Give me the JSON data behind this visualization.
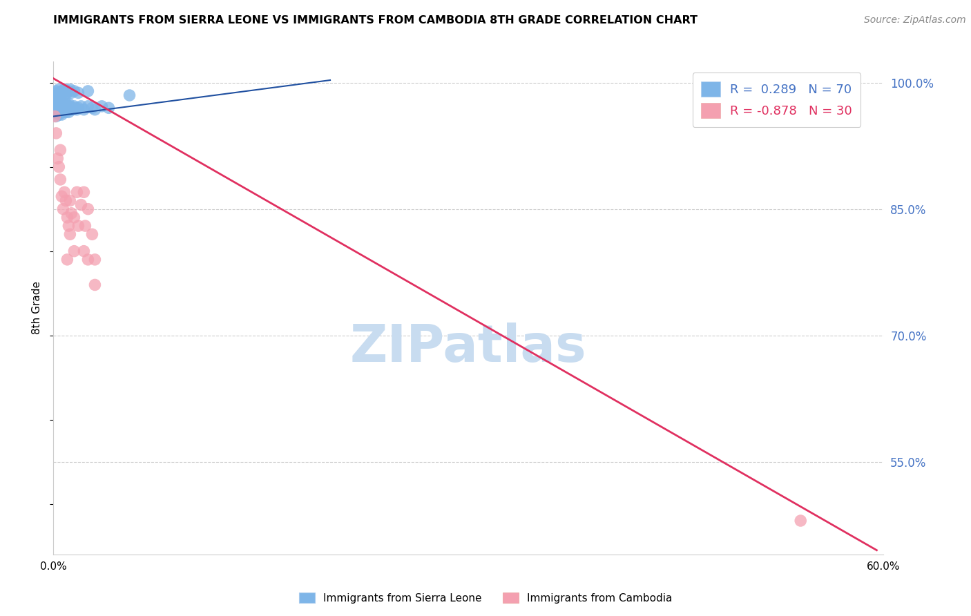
{
  "title": "IMMIGRANTS FROM SIERRA LEONE VS IMMIGRANTS FROM CAMBODIA 8TH GRADE CORRELATION CHART",
  "source": "Source: ZipAtlas.com",
  "ylabel": "8th Grade",
  "right_ytick_labels": [
    "100.0%",
    "85.0%",
    "70.0%",
    "55.0%"
  ],
  "right_ytick_values": [
    1.0,
    0.85,
    0.7,
    0.55
  ],
  "xlim": [
    0.0,
    0.6
  ],
  "ylim": [
    0.44,
    1.025
  ],
  "xtick_values": [
    0.0,
    0.1,
    0.2,
    0.3,
    0.4,
    0.5,
    0.6
  ],
  "xtick_labels": [
    "0.0%",
    "",
    "",
    "",
    "",
    "",
    "60.0%"
  ],
  "blue_color": "#7EB5E8",
  "pink_color": "#F4A0B0",
  "blue_line_color": "#2050A0",
  "pink_line_color": "#E03060",
  "legend_blue_R": " 0.289",
  "legend_blue_N": "70",
  "legend_pink_R": "-0.878",
  "legend_pink_N": "30",
  "watermark": "ZIPatlas",
  "watermark_color": "#C8DCF0",
  "blue_line_x": [
    0.0,
    0.2
  ],
  "blue_line_y": [
    0.96,
    1.003
  ],
  "pink_line_x": [
    0.0,
    0.595
  ],
  "pink_line_y": [
    1.005,
    0.445
  ],
  "blue_dots_x": [
    0.001,
    0.001,
    0.001,
    0.001,
    0.002,
    0.002,
    0.002,
    0.002,
    0.002,
    0.003,
    0.003,
    0.003,
    0.003,
    0.003,
    0.004,
    0.004,
    0.004,
    0.004,
    0.004,
    0.005,
    0.005,
    0.005,
    0.005,
    0.006,
    0.006,
    0.006,
    0.006,
    0.007,
    0.007,
    0.007,
    0.008,
    0.008,
    0.008,
    0.009,
    0.009,
    0.01,
    0.01,
    0.011,
    0.011,
    0.012,
    0.012,
    0.013,
    0.014,
    0.015,
    0.016,
    0.017,
    0.018,
    0.02,
    0.022,
    0.025,
    0.028,
    0.03,
    0.035,
    0.04,
    0.002,
    0.003,
    0.004,
    0.005,
    0.006,
    0.007,
    0.008,
    0.009,
    0.01,
    0.011,
    0.012,
    0.013,
    0.015,
    0.018,
    0.025,
    0.055
  ],
  "blue_dots_y": [
    0.97,
    0.975,
    0.98,
    0.965,
    0.972,
    0.978,
    0.968,
    0.982,
    0.96,
    0.975,
    0.97,
    0.98,
    0.965,
    0.985,
    0.972,
    0.968,
    0.98,
    0.975,
    0.962,
    0.97,
    0.975,
    0.98,
    0.965,
    0.972,
    0.968,
    0.978,
    0.962,
    0.975,
    0.97,
    0.965,
    0.972,
    0.968,
    0.98,
    0.975,
    0.965,
    0.972,
    0.968,
    0.975,
    0.965,
    0.972,
    0.968,
    0.97,
    0.968,
    0.972,
    0.97,
    0.968,
    0.97,
    0.972,
    0.968,
    0.972,
    0.97,
    0.968,
    0.972,
    0.97,
    0.99,
    0.988,
    0.992,
    0.988,
    0.99,
    0.988,
    0.992,
    0.99,
    0.988,
    0.99,
    0.992,
    0.988,
    0.99,
    0.988,
    0.99,
    0.985
  ],
  "pink_dots_x": [
    0.001,
    0.002,
    0.003,
    0.004,
    0.005,
    0.006,
    0.007,
    0.008,
    0.009,
    0.01,
    0.011,
    0.012,
    0.013,
    0.015,
    0.017,
    0.02,
    0.023,
    0.01,
    0.012,
    0.015,
    0.018,
    0.022,
    0.025,
    0.03,
    0.022,
    0.025,
    0.028,
    0.03,
    0.54,
    0.005
  ],
  "pink_dots_y": [
    0.96,
    0.94,
    0.91,
    0.9,
    0.885,
    0.865,
    0.85,
    0.87,
    0.86,
    0.84,
    0.83,
    0.82,
    0.845,
    0.8,
    0.87,
    0.855,
    0.83,
    0.79,
    0.86,
    0.84,
    0.83,
    0.8,
    0.79,
    0.76,
    0.87,
    0.85,
    0.82,
    0.79,
    0.48,
    0.92
  ]
}
